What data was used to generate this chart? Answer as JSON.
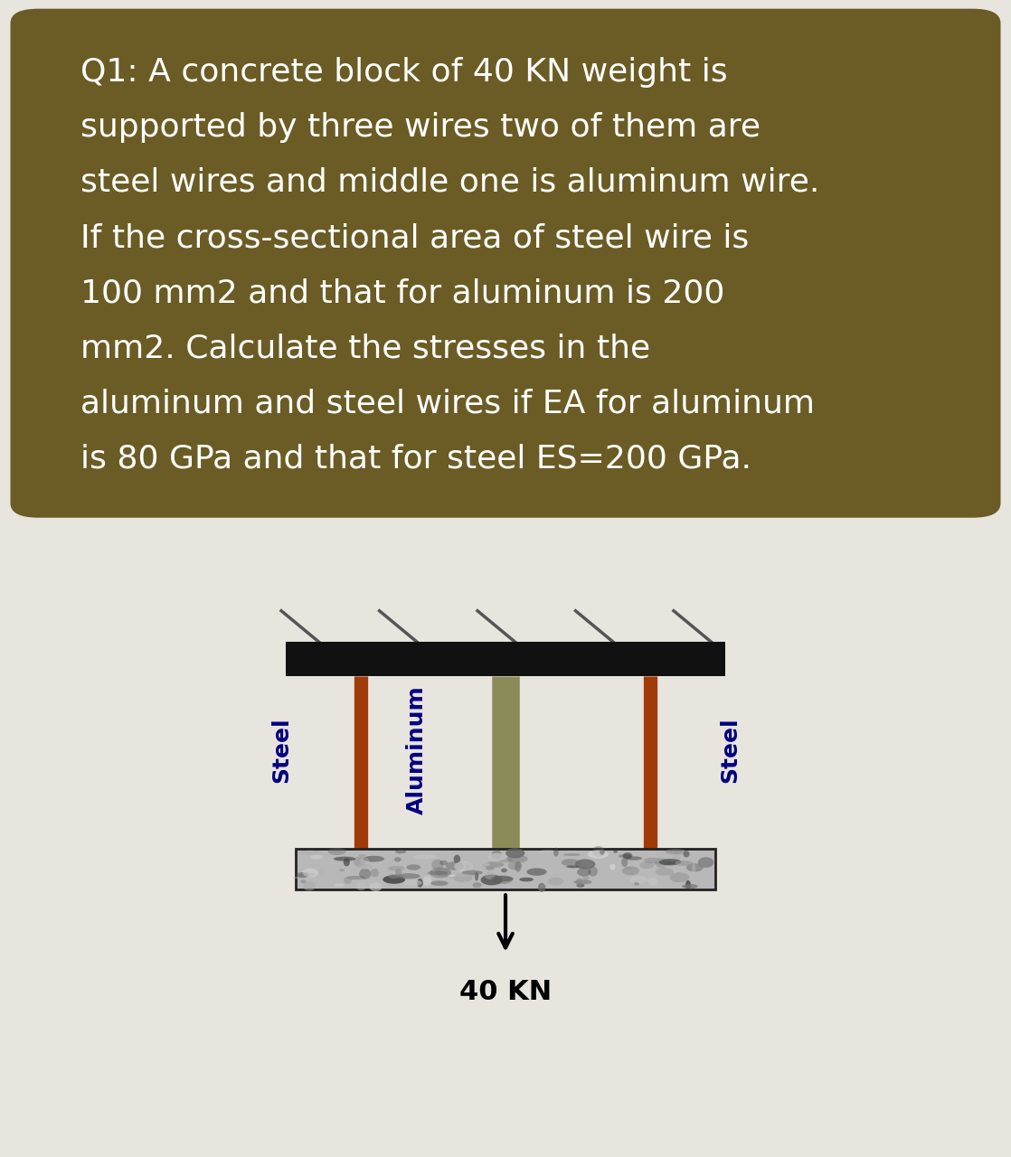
{
  "bg_color": "#e8e4de",
  "text_box_color": "#6b5c25",
  "text_box_text_color": "#ffffff",
  "text_lines": [
    "Q1: A concrete block of 40 KN weight is",
    "supported by three wires two of them are",
    "steel wires and middle one is aluminum wire.",
    "If the cross-sectional area of steel wire is",
    "100 mm2 and that for aluminum is 200",
    "mm2. Calculate the stresses in the",
    "aluminum and steel wires if EA for aluminum",
    "is 80 GPa and that for steel ES=200 GPa."
  ],
  "diagram_bg": "#ffffff",
  "ceiling_color": "#111111",
  "steel_wire_color": "#a03a08",
  "aluminum_wire_color": "#8b8b5a",
  "label_steel": "Steel",
  "label_aluminum": "Aluminum",
  "label_force": "40 KN",
  "label_color": "#000080"
}
